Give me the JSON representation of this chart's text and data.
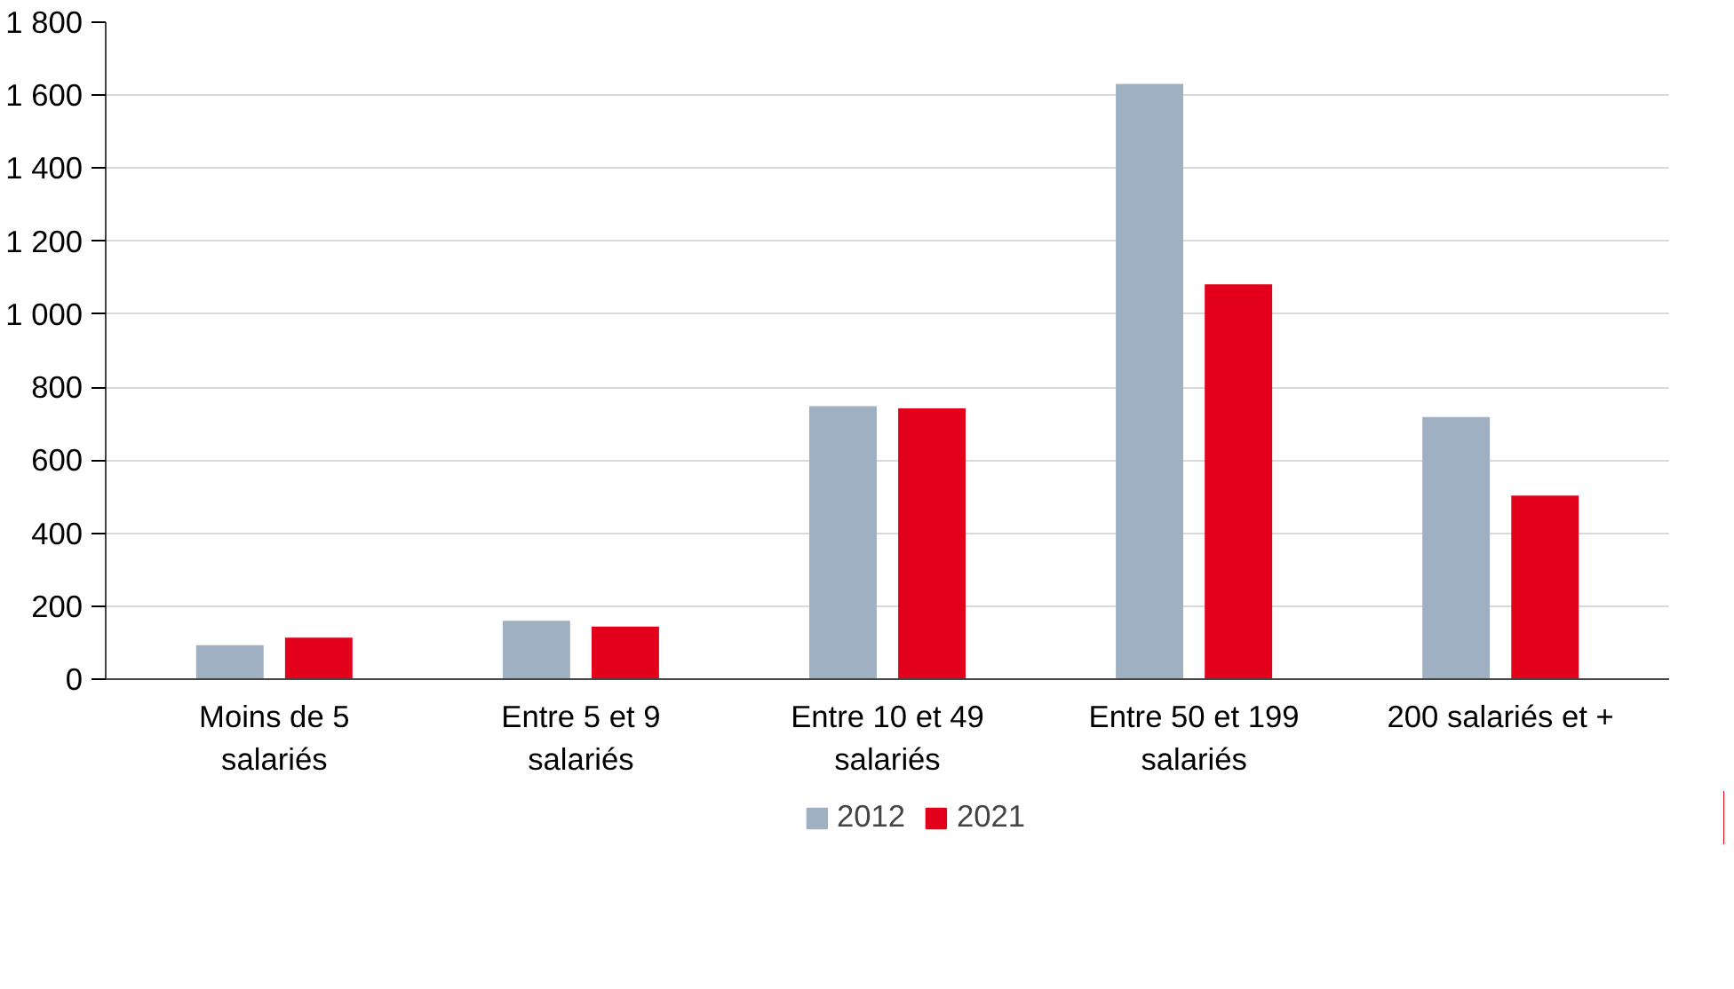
{
  "chart_data": {
    "type": "bar",
    "categories": [
      "Moins de 5 salariés",
      "Entre 5 et 9 salariés",
      "Entre 10 et 49 salariés",
      "Entre 50 et 199 salariés",
      "200 salariés et +"
    ],
    "series": [
      {
        "name": "2012",
        "color": "#9eb0c1",
        "values": [
          93,
          160,
          748,
          1631,
          718
        ]
      },
      {
        "name": "2021",
        "color": "#e2001a",
        "values": [
          114,
          144,
          742,
          1082,
          503
        ]
      }
    ],
    "ylim": [
      0,
      1800
    ],
    "yticks": [
      0,
      200,
      400,
      600,
      800,
      {
        "value": 1000,
        "label": "1 000"
      },
      {
        "value": 1200,
        "label": "1 200"
      },
      {
        "value": 1400,
        "label": "1 400"
      },
      {
        "value": 1600,
        "label": "1 600"
      },
      {
        "value": 1800,
        "label": "1 800"
      }
    ],
    "grid": "y",
    "legend": "bottom"
  }
}
